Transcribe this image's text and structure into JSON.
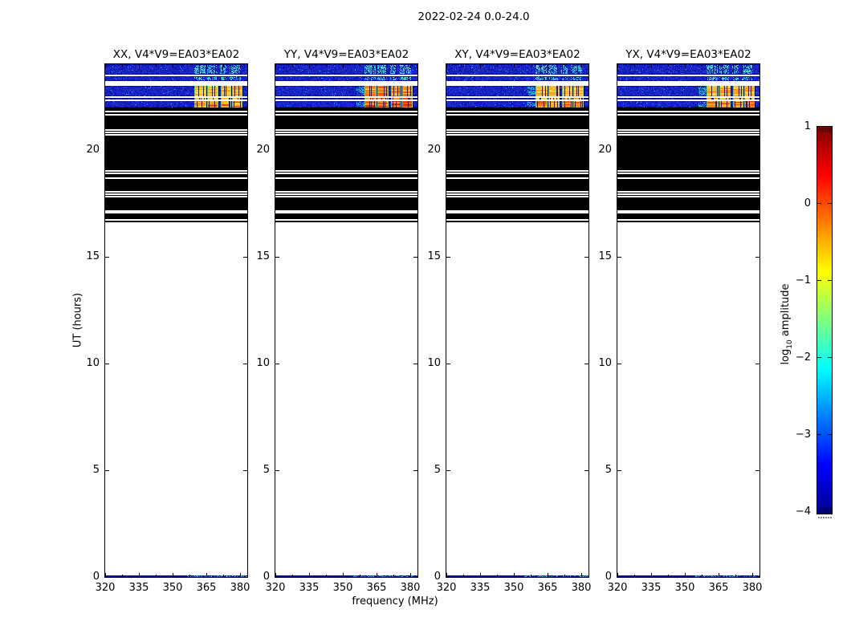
{
  "figure": {
    "title": "2022-02-24 0.0-24.0",
    "xlabel": "frequency (MHz)",
    "ylabel": "UT (hours)",
    "colorbar": {
      "label_prefix": "log",
      "label_sub": "10",
      "label_suffix": " amplitude",
      "tick_labels": [
        "1",
        "0",
        "−1",
        "−2",
        "−3",
        "−4"
      ],
      "tick_values": [
        1,
        0,
        -1,
        -2,
        -3,
        -4
      ]
    }
  },
  "chart_data": {
    "type": "heatmap",
    "title": "2022-02-24 0.0-24.0",
    "date": "2022-02-24",
    "time_range_hours": [
      0.0,
      24.0
    ],
    "xlabel": "frequency (MHz)",
    "ylabel": "UT (hours)",
    "x_range_mhz": [
      320,
      383.2
    ],
    "x_ticks_mhz": [
      320,
      335,
      350,
      365,
      380
    ],
    "x_tick_labels": [
      "320",
      "335",
      "350",
      "365",
      "380"
    ],
    "x_minor_ticks_mhz": [
      327.5,
      342.5,
      357.5,
      372.5
    ],
    "y_range_hours": [
      0,
      24
    ],
    "y_ticks_hours": [
      0,
      5,
      10,
      15,
      20
    ],
    "y_tick_labels": [
      "0",
      "5",
      "10",
      "15",
      "20"
    ],
    "colorbar": {
      "label": "log10 amplitude",
      "ticks": [
        1,
        0,
        -1,
        -2,
        -3,
        -4
      ],
      "min": -4,
      "max": 1,
      "colormap": "jet"
    },
    "panels": [
      {
        "title": "XX, V4*V9=EA03*EA02",
        "pol": "XX",
        "baseline": "V4*V9=EA03*EA02",
        "seed": 11,
        "lead_in_cyan": false,
        "rfi_b_palette": [
          "#ffd83c",
          "#ffc430",
          "#ff9e20",
          "#e8e84a"
        ],
        "rfi_c_palette": [
          "#ffae2a",
          "#ff8316",
          "#f04800",
          "#ffc430"
        ]
      },
      {
        "title": "YY, V4*V9=EA03*EA02",
        "pol": "YY",
        "baseline": "V4*V9=EA03*EA02",
        "seed": 22,
        "lead_in_cyan": true,
        "rfi_b_palette": [
          "#ffb02c",
          "#ff8c14",
          "#f45400",
          "#ffd83c"
        ],
        "rfi_c_palette": [
          "#ff7a10",
          "#f03800",
          "#e02800",
          "#ff9e20"
        ]
      },
      {
        "title": "XY, V4*V9=EA03*EA02",
        "pol": "XY",
        "baseline": "V4*V9=EA03*EA02",
        "seed": 33,
        "lead_in_cyan": true,
        "rfi_b_palette": [
          "#ffd83c",
          "#ffb82e",
          "#ff9220",
          "#eae04a"
        ],
        "rfi_c_palette": [
          "#ffc430",
          "#ff9a1e",
          "#ff7410",
          "#f05000"
        ]
      },
      {
        "title": "YX, V4*V9=EA03*EA02",
        "pol": "YX",
        "baseline": "V4*V9=EA03*EA02",
        "seed": 44,
        "lead_in_cyan": true,
        "rfi_b_palette": [
          "#ffd03a",
          "#ffae28",
          "#ff8818",
          "#f0e648"
        ],
        "rfi_c_palette": [
          "#ffa424",
          "#ff7c12",
          "#e84000",
          "#ffc430"
        ]
      }
    ],
    "features": {
      "noise_bands_ut": [
        {
          "ut": [
            23.51,
            24.0
          ],
          "kind": "A"
        },
        {
          "ut": [
            23.21,
            23.44
          ],
          "kind": "A"
        },
        {
          "ut": [
            22.5,
            22.99
          ],
          "kind": "B"
        },
        {
          "ut": [
            22.33,
            22.42
          ],
          "kind": "B"
        },
        {
          "ut": [
            21.97,
            22.27
          ],
          "kind": "C"
        }
      ],
      "rfi_cyan_clusters_mhz": [
        [
          359.5,
          364.5
        ],
        [
          365.5,
          369.5
        ],
        [
          371,
          374
        ],
        [
          375.5,
          380.5
        ]
      ],
      "rfi_blocks_mhz": [
        [
          359.5,
          365
        ],
        [
          365.5,
          370.5
        ],
        [
          371.5,
          376
        ],
        [
          376.5,
          381
        ]
      ],
      "blackout_ut": [
        16.6,
        21.97
      ],
      "blackout_white_stripes": [
        [
          21.82,
          2
        ],
        [
          21.68,
          2
        ],
        [
          20.96,
          2
        ],
        [
          20.85,
          2
        ],
        [
          20.73,
          2
        ],
        [
          19.04,
          2
        ],
        [
          18.93,
          2
        ],
        [
          18.72,
          2
        ],
        [
          18.07,
          2
        ],
        [
          17.96,
          2
        ],
        [
          17.83,
          2
        ],
        [
          17.16,
          4
        ],
        [
          16.75,
          2
        ]
      ],
      "bottom_strip_ut": [
        0,
        0.09
      ]
    }
  }
}
